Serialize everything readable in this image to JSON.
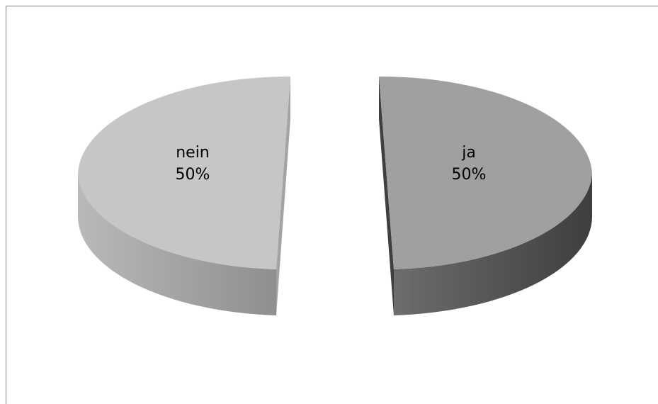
{
  "chart_data": {
    "type": "pie",
    "style": "3d-exploded",
    "slices": [
      {
        "label": "nein",
        "value": 50,
        "percent_label": "50%",
        "top_color": "#c6c6c6",
        "side_color": "#a6a6a6"
      },
      {
        "label": "ja",
        "value": 50,
        "percent_label": "50%",
        "top_color": "#a0a0a0",
        "side_color": "#4d4d4d"
      }
    ],
    "legend": "none"
  }
}
